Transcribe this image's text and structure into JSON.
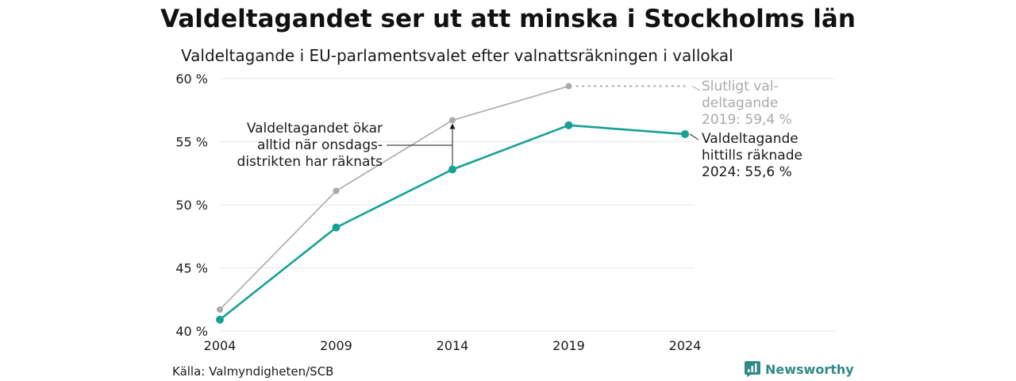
{
  "title": "Valdeltagandet ser ut att minska i Stockholms län",
  "subtitle": "Valdeltagande i EU-parlamentsvalet efter valnattsräkningen i vallokal",
  "source": "Källa: Valmyndigheten/SCB",
  "brand": "Newsworthy",
  "colors": {
    "final": "#aaaaaa",
    "counted": "#16a195",
    "grid": "#e6e6e6",
    "brand": "#2f8a86"
  },
  "chart_data": {
    "type": "line",
    "x": [
      2004,
      2009,
      2014,
      2019,
      2024
    ],
    "ylim": [
      40,
      60
    ],
    "yticks": [
      "40 %",
      "45 %",
      "50 %",
      "55 %",
      "60 %"
    ],
    "xticks": [
      "2004",
      "2009",
      "2014",
      "2019",
      "2024"
    ],
    "series": [
      {
        "key": "final",
        "values": [
          41.7,
          51.1,
          56.7,
          59.4,
          null
        ]
      },
      {
        "key": "counted",
        "values": [
          40.9,
          48.2,
          52.8,
          56.3,
          55.6
        ]
      }
    ],
    "annotations": {
      "final_label": [
        "Slutligt val-",
        "deltagande",
        "2019: 59,4 %"
      ],
      "counted_label": [
        "Valdeltagande",
        "hittills räknade",
        "2024: 55,6 %"
      ],
      "wednesday_note": [
        "Valdeltagandet ökar",
        "alltid när onsdags-",
        "distrikten har räknats"
      ]
    }
  }
}
